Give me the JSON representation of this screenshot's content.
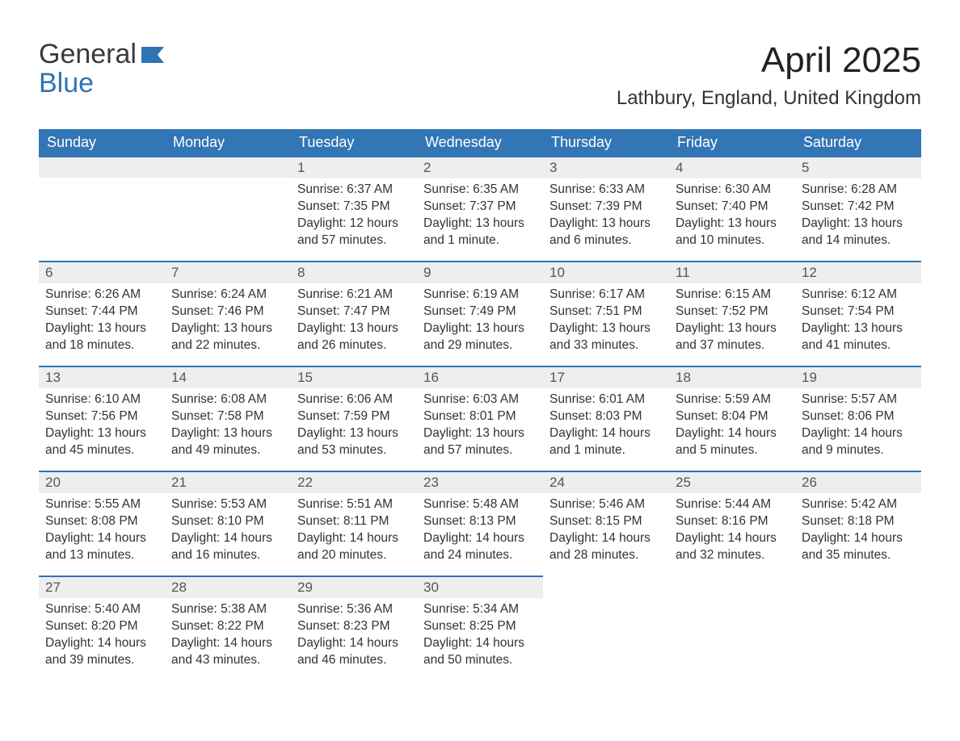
{
  "logo": {
    "line1": "General",
    "line2": "Blue",
    "accent_color": "#2e74b5"
  },
  "title": "April 2025",
  "location": "Lathbury, England, United Kingdom",
  "colors": {
    "header_bg": "#3276b6",
    "header_text": "#ffffff",
    "date_bg": "#eeeeee",
    "date_text": "#555555",
    "accent": "#2e74b5",
    "body_text": "#333333",
    "background": "#ffffff"
  },
  "fonts": {
    "title_size": 44,
    "location_size": 24,
    "header_size": 18,
    "date_size": 17,
    "body_size": 15.5
  },
  "days_of_week": [
    "Sunday",
    "Monday",
    "Tuesday",
    "Wednesday",
    "Thursday",
    "Friday",
    "Saturday"
  ],
  "weeks": [
    [
      {
        "date": "",
        "sunrise": "",
        "sunset": "",
        "daylight1": "",
        "daylight2": ""
      },
      {
        "date": "",
        "sunrise": "",
        "sunset": "",
        "daylight1": "",
        "daylight2": ""
      },
      {
        "date": "1",
        "sunrise": "Sunrise: 6:37 AM",
        "sunset": "Sunset: 7:35 PM",
        "daylight1": "Daylight: 12 hours",
        "daylight2": "and 57 minutes."
      },
      {
        "date": "2",
        "sunrise": "Sunrise: 6:35 AM",
        "sunset": "Sunset: 7:37 PM",
        "daylight1": "Daylight: 13 hours",
        "daylight2": "and 1 minute."
      },
      {
        "date": "3",
        "sunrise": "Sunrise: 6:33 AM",
        "sunset": "Sunset: 7:39 PM",
        "daylight1": "Daylight: 13 hours",
        "daylight2": "and 6 minutes."
      },
      {
        "date": "4",
        "sunrise": "Sunrise: 6:30 AM",
        "sunset": "Sunset: 7:40 PM",
        "daylight1": "Daylight: 13 hours",
        "daylight2": "and 10 minutes."
      },
      {
        "date": "5",
        "sunrise": "Sunrise: 6:28 AM",
        "sunset": "Sunset: 7:42 PM",
        "daylight1": "Daylight: 13 hours",
        "daylight2": "and 14 minutes."
      }
    ],
    [
      {
        "date": "6",
        "sunrise": "Sunrise: 6:26 AM",
        "sunset": "Sunset: 7:44 PM",
        "daylight1": "Daylight: 13 hours",
        "daylight2": "and 18 minutes."
      },
      {
        "date": "7",
        "sunrise": "Sunrise: 6:24 AM",
        "sunset": "Sunset: 7:46 PM",
        "daylight1": "Daylight: 13 hours",
        "daylight2": "and 22 minutes."
      },
      {
        "date": "8",
        "sunrise": "Sunrise: 6:21 AM",
        "sunset": "Sunset: 7:47 PM",
        "daylight1": "Daylight: 13 hours",
        "daylight2": "and 26 minutes."
      },
      {
        "date": "9",
        "sunrise": "Sunrise: 6:19 AM",
        "sunset": "Sunset: 7:49 PM",
        "daylight1": "Daylight: 13 hours",
        "daylight2": "and 29 minutes."
      },
      {
        "date": "10",
        "sunrise": "Sunrise: 6:17 AM",
        "sunset": "Sunset: 7:51 PM",
        "daylight1": "Daylight: 13 hours",
        "daylight2": "and 33 minutes."
      },
      {
        "date": "11",
        "sunrise": "Sunrise: 6:15 AM",
        "sunset": "Sunset: 7:52 PM",
        "daylight1": "Daylight: 13 hours",
        "daylight2": "and 37 minutes."
      },
      {
        "date": "12",
        "sunrise": "Sunrise: 6:12 AM",
        "sunset": "Sunset: 7:54 PM",
        "daylight1": "Daylight: 13 hours",
        "daylight2": "and 41 minutes."
      }
    ],
    [
      {
        "date": "13",
        "sunrise": "Sunrise: 6:10 AM",
        "sunset": "Sunset: 7:56 PM",
        "daylight1": "Daylight: 13 hours",
        "daylight2": "and 45 minutes."
      },
      {
        "date": "14",
        "sunrise": "Sunrise: 6:08 AM",
        "sunset": "Sunset: 7:58 PM",
        "daylight1": "Daylight: 13 hours",
        "daylight2": "and 49 minutes."
      },
      {
        "date": "15",
        "sunrise": "Sunrise: 6:06 AM",
        "sunset": "Sunset: 7:59 PM",
        "daylight1": "Daylight: 13 hours",
        "daylight2": "and 53 minutes."
      },
      {
        "date": "16",
        "sunrise": "Sunrise: 6:03 AM",
        "sunset": "Sunset: 8:01 PM",
        "daylight1": "Daylight: 13 hours",
        "daylight2": "and 57 minutes."
      },
      {
        "date": "17",
        "sunrise": "Sunrise: 6:01 AM",
        "sunset": "Sunset: 8:03 PM",
        "daylight1": "Daylight: 14 hours",
        "daylight2": "and 1 minute."
      },
      {
        "date": "18",
        "sunrise": "Sunrise: 5:59 AM",
        "sunset": "Sunset: 8:04 PM",
        "daylight1": "Daylight: 14 hours",
        "daylight2": "and 5 minutes."
      },
      {
        "date": "19",
        "sunrise": "Sunrise: 5:57 AM",
        "sunset": "Sunset: 8:06 PM",
        "daylight1": "Daylight: 14 hours",
        "daylight2": "and 9 minutes."
      }
    ],
    [
      {
        "date": "20",
        "sunrise": "Sunrise: 5:55 AM",
        "sunset": "Sunset: 8:08 PM",
        "daylight1": "Daylight: 14 hours",
        "daylight2": "and 13 minutes."
      },
      {
        "date": "21",
        "sunrise": "Sunrise: 5:53 AM",
        "sunset": "Sunset: 8:10 PM",
        "daylight1": "Daylight: 14 hours",
        "daylight2": "and 16 minutes."
      },
      {
        "date": "22",
        "sunrise": "Sunrise: 5:51 AM",
        "sunset": "Sunset: 8:11 PM",
        "daylight1": "Daylight: 14 hours",
        "daylight2": "and 20 minutes."
      },
      {
        "date": "23",
        "sunrise": "Sunrise: 5:48 AM",
        "sunset": "Sunset: 8:13 PM",
        "daylight1": "Daylight: 14 hours",
        "daylight2": "and 24 minutes."
      },
      {
        "date": "24",
        "sunrise": "Sunrise: 5:46 AM",
        "sunset": "Sunset: 8:15 PM",
        "daylight1": "Daylight: 14 hours",
        "daylight2": "and 28 minutes."
      },
      {
        "date": "25",
        "sunrise": "Sunrise: 5:44 AM",
        "sunset": "Sunset: 8:16 PM",
        "daylight1": "Daylight: 14 hours",
        "daylight2": "and 32 minutes."
      },
      {
        "date": "26",
        "sunrise": "Sunrise: 5:42 AM",
        "sunset": "Sunset: 8:18 PM",
        "daylight1": "Daylight: 14 hours",
        "daylight2": "and 35 minutes."
      }
    ],
    [
      {
        "date": "27",
        "sunrise": "Sunrise: 5:40 AM",
        "sunset": "Sunset: 8:20 PM",
        "daylight1": "Daylight: 14 hours",
        "daylight2": "and 39 minutes."
      },
      {
        "date": "28",
        "sunrise": "Sunrise: 5:38 AM",
        "sunset": "Sunset: 8:22 PM",
        "daylight1": "Daylight: 14 hours",
        "daylight2": "and 43 minutes."
      },
      {
        "date": "29",
        "sunrise": "Sunrise: 5:36 AM",
        "sunset": "Sunset: 8:23 PM",
        "daylight1": "Daylight: 14 hours",
        "daylight2": "and 46 minutes."
      },
      {
        "date": "30",
        "sunrise": "Sunrise: 5:34 AM",
        "sunset": "Sunset: 8:25 PM",
        "daylight1": "Daylight: 14 hours",
        "daylight2": "and 50 minutes."
      },
      {
        "date": "",
        "sunrise": "",
        "sunset": "",
        "daylight1": "",
        "daylight2": ""
      },
      {
        "date": "",
        "sunrise": "",
        "sunset": "",
        "daylight1": "",
        "daylight2": ""
      },
      {
        "date": "",
        "sunrise": "",
        "sunset": "",
        "daylight1": "",
        "daylight2": ""
      }
    ]
  ]
}
